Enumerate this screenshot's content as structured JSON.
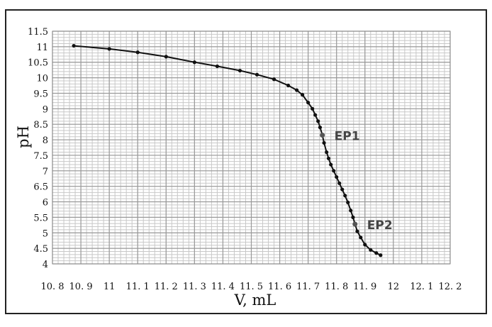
{
  "chart_data": {
    "type": "line",
    "title": "",
    "xlabel": "V, mL",
    "ylabel": "pH",
    "xlim": [
      10.8,
      12.2
    ],
    "ylim": [
      4,
      11.5
    ],
    "x_major_step": 0.1,
    "x_minor_step": 0.02,
    "y_major_step": 0.5,
    "y_minor_step": 0.1,
    "grid": true,
    "legend": "none",
    "x_tick_labels": [
      "10. 8",
      "10. 9",
      "11",
      "11. 1",
      "11. 2",
      "11. 3",
      "11. 4",
      "11. 5",
      "11. 6",
      "11. 7",
      "11. 8",
      "11. 9",
      "12",
      "12. 1",
      "12. 2"
    ],
    "y_tick_labels": [
      "4",
      "4.5",
      "5",
      "5.5",
      "6",
      "6.5",
      "7",
      "7.5",
      "8",
      "8.5",
      "9",
      "9.5",
      "10",
      "10.5",
      "11",
      "11.5"
    ],
    "colors": {
      "line": "#111111",
      "grid_minor": "#c8c8c8",
      "grid_major": "#9a9a9a",
      "annotation": "#555555",
      "frame": "#222222"
    },
    "series": [
      {
        "values": [
          [
            10.875,
            11.03
          ],
          [
            11.0,
            10.93
          ],
          [
            11.1,
            10.82
          ],
          [
            11.2,
            10.68
          ],
          [
            11.3,
            10.5
          ],
          [
            11.38,
            10.37
          ],
          [
            11.46,
            10.23
          ],
          [
            11.52,
            10.1
          ],
          [
            11.58,
            9.95
          ],
          [
            11.63,
            9.75
          ],
          [
            11.66,
            9.6
          ],
          [
            11.68,
            9.45
          ],
          [
            11.7,
            9.2
          ],
          [
            11.715,
            9.0
          ],
          [
            11.725,
            8.8
          ],
          [
            11.735,
            8.6
          ],
          [
            11.742,
            8.4
          ],
          [
            11.75,
            8.15
          ],
          [
            11.756,
            7.9
          ],
          [
            11.765,
            7.6
          ],
          [
            11.772,
            7.4
          ],
          [
            11.78,
            7.2
          ],
          [
            11.79,
            7.0
          ],
          [
            11.8,
            6.8
          ],
          [
            11.81,
            6.6
          ],
          [
            11.82,
            6.4
          ],
          [
            11.83,
            6.2
          ],
          [
            11.84,
            5.98
          ],
          [
            11.85,
            5.72
          ],
          [
            11.858,
            5.5
          ],
          [
            11.865,
            5.28
          ],
          [
            11.873,
            5.05
          ],
          [
            11.885,
            4.85
          ],
          [
            11.9,
            4.62
          ],
          [
            11.92,
            4.45
          ],
          [
            11.94,
            4.35
          ],
          [
            11.955,
            4.28
          ]
        ]
      }
    ],
    "annotations": [
      {
        "label": "EP1",
        "x": 11.75,
        "y": 8.15
      },
      {
        "label": "EP2",
        "x": 11.865,
        "y": 5.28
      }
    ]
  }
}
